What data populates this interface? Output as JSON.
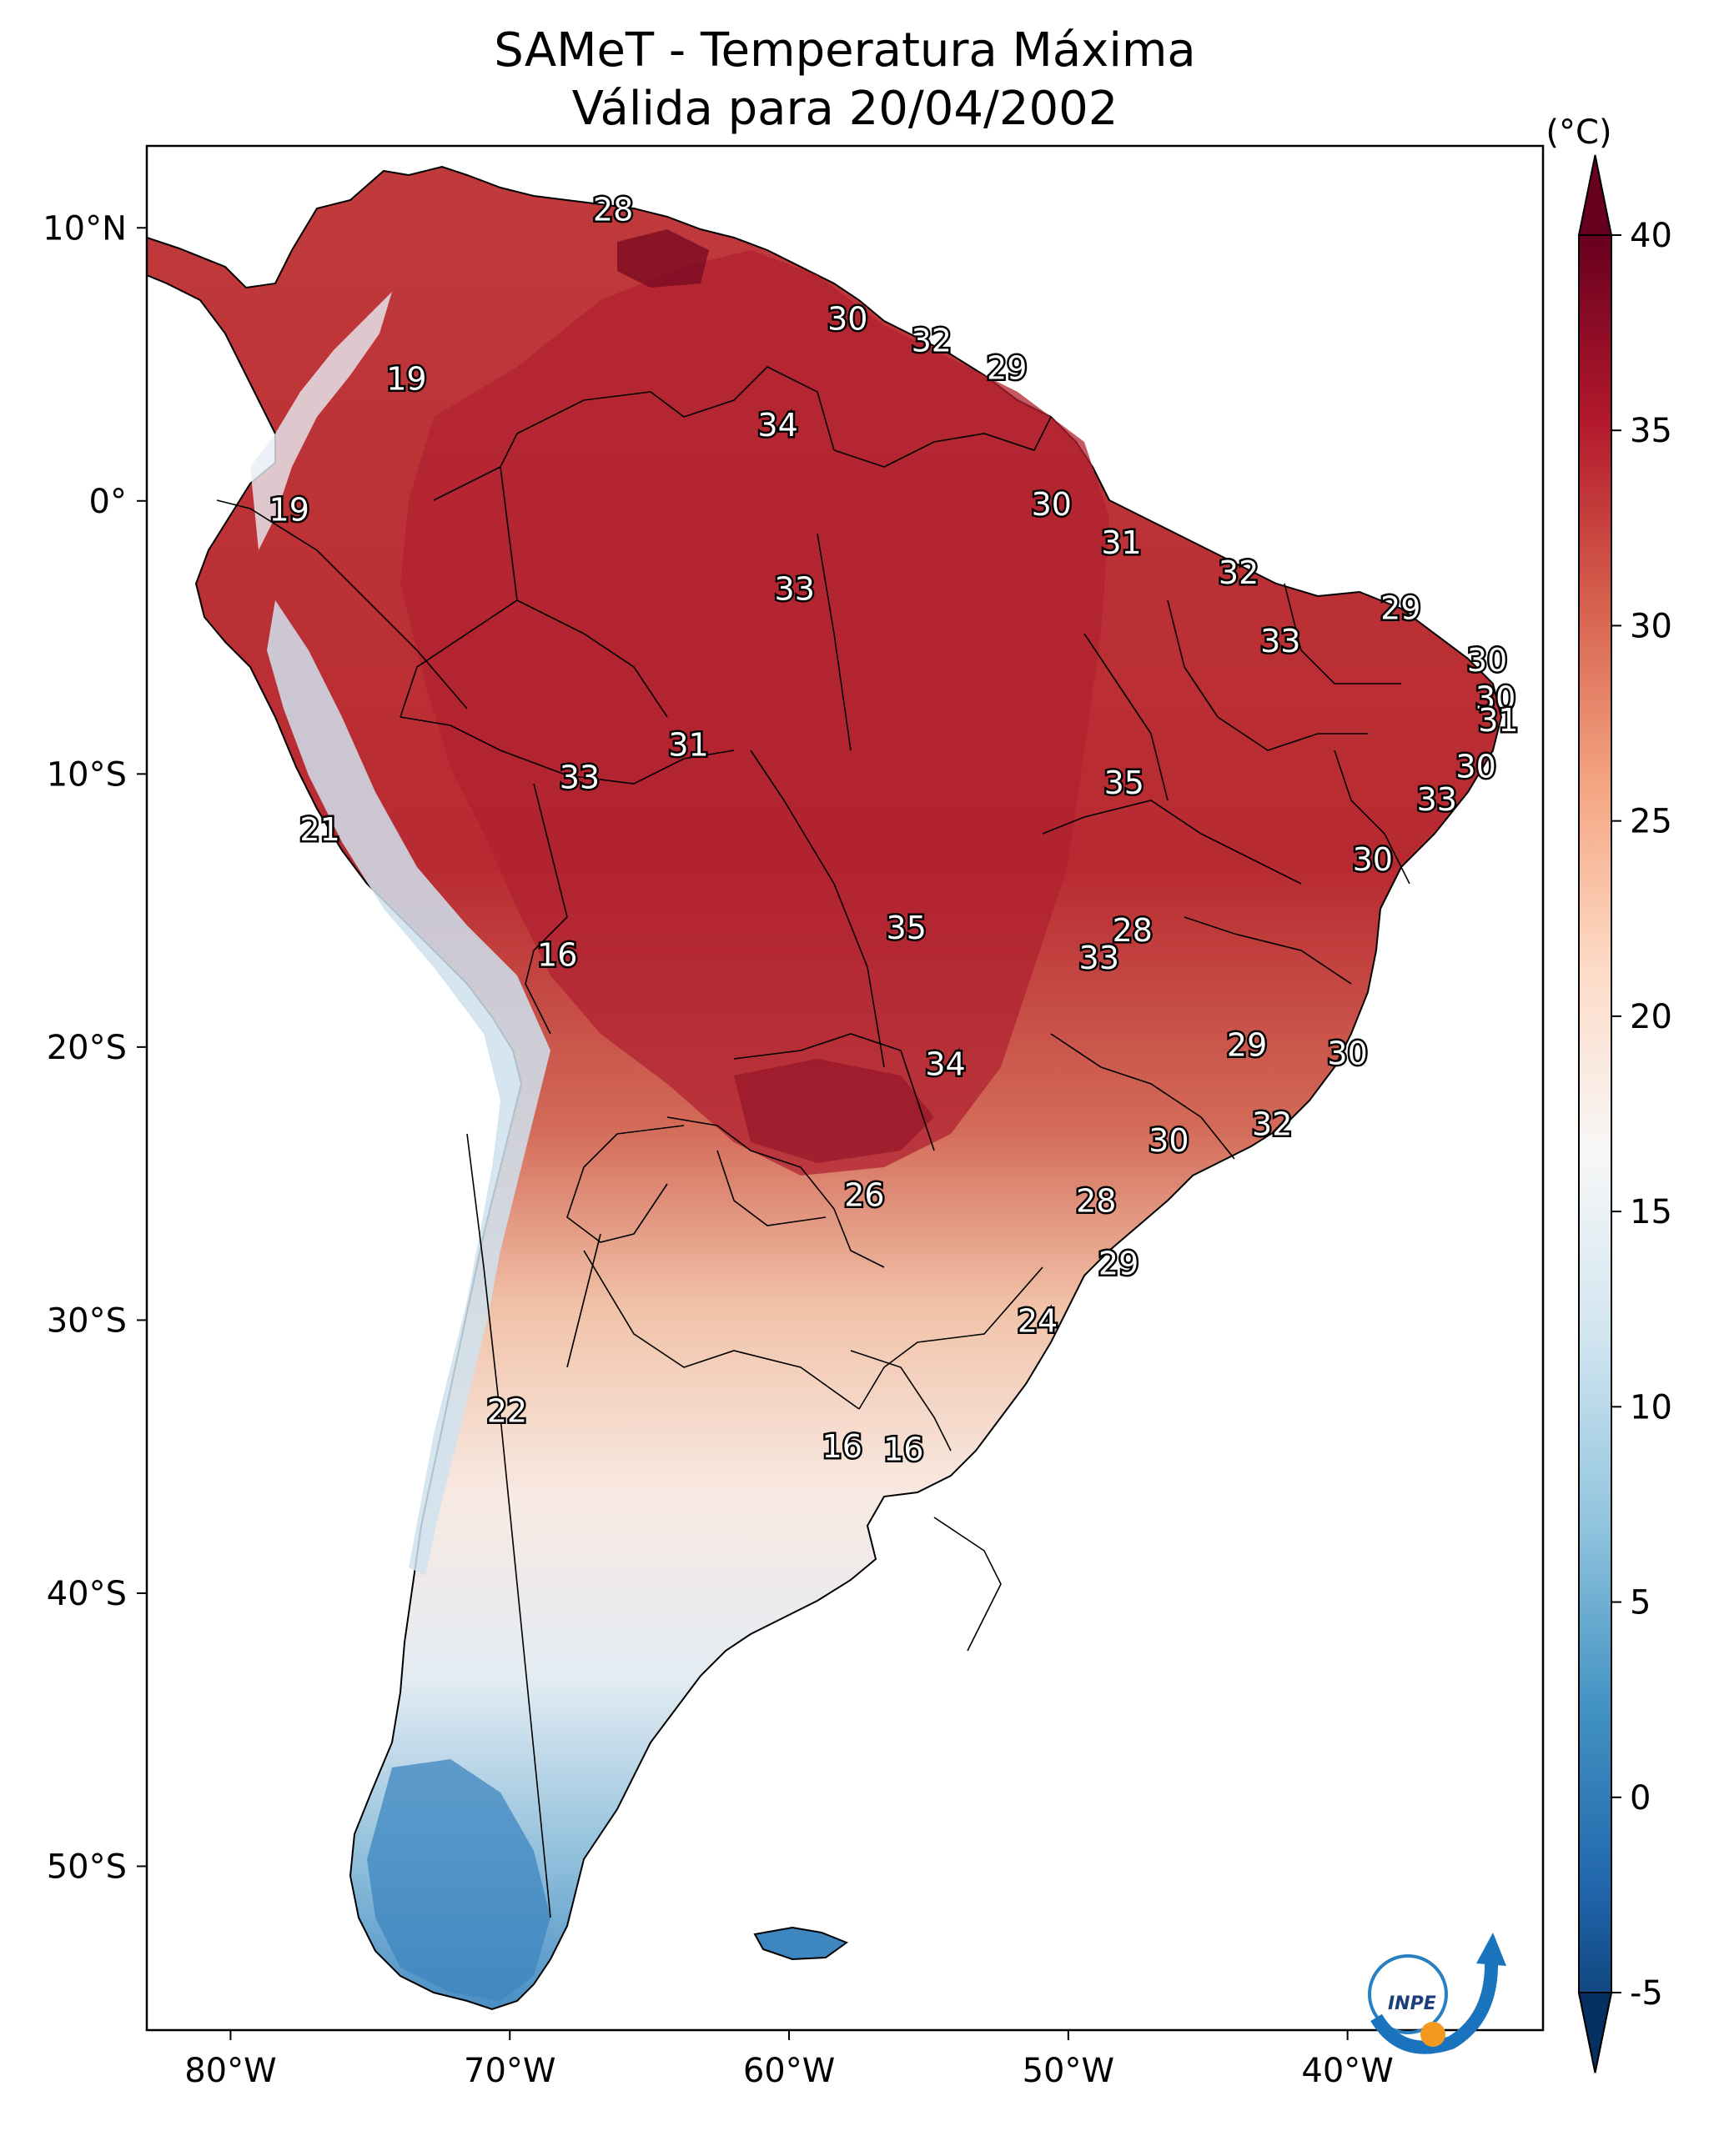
{
  "title": "SAMeT - Temperatura Máxima",
  "subtitle": "Válida para 20/04/2002",
  "colorbar": {
    "unit": "(°C)",
    "min": -5,
    "max": 40,
    "ticks": [
      "40",
      "35",
      "30",
      "25",
      "20",
      "15",
      "10",
      "5",
      "0",
      "-5"
    ],
    "tick_values": [
      40,
      35,
      30,
      25,
      20,
      15,
      10,
      5,
      0,
      -5
    ],
    "colors": [
      "#67001f",
      "#b2182b",
      "#d6604d",
      "#f4a582",
      "#fddbc7",
      "#f7f7f7",
      "#d1e5f0",
      "#92c5de",
      "#4393c3",
      "#2166ac",
      "#053061"
    ]
  },
  "axes": {
    "lon_ticks": [
      "80°W",
      "70°W",
      "60°W",
      "50°W",
      "40°W"
    ],
    "lon_values": [
      -80,
      -70,
      -60,
      -50,
      -40
    ],
    "lat_ticks": [
      "10°N",
      "0°",
      "10°S",
      "20°S",
      "30°S",
      "40°S",
      "50°S"
    ],
    "lat_values": [
      10,
      0,
      -10,
      -20,
      -30,
      -40,
      -50
    ],
    "lon_range": [
      -83,
      -33
    ],
    "lat_range": [
      -56,
      13
    ]
  },
  "labels": [
    {
      "text": "28",
      "lon": -66.3,
      "lat": 10.7
    },
    {
      "text": "19",
      "lon": -73.7,
      "lat": 4.5
    },
    {
      "text": "30",
      "lon": -57.9,
      "lat": 6.7
    },
    {
      "text": "32",
      "lon": -54.9,
      "lat": 5.9
    },
    {
      "text": "29",
      "lon": -52.2,
      "lat": 4.9
    },
    {
      "text": "34",
      "lon": -60.4,
      "lat": 2.8
    },
    {
      "text": "19",
      "lon": -77.9,
      "lat": -0.3
    },
    {
      "text": "30",
      "lon": -50.6,
      "lat": -0.1
    },
    {
      "text": "31",
      "lon": -48.1,
      "lat": -1.5
    },
    {
      "text": "32",
      "lon": -43.9,
      "lat": -2.6
    },
    {
      "text": "33",
      "lon": -59.8,
      "lat": -3.2
    },
    {
      "text": "29",
      "lon": -38.1,
      "lat": -3.9
    },
    {
      "text": "33",
      "lon": -42.4,
      "lat": -5.1
    },
    {
      "text": "30",
      "lon": -35.0,
      "lat": -5.8
    },
    {
      "text": "30",
      "lon": -34.7,
      "lat": -7.2
    },
    {
      "text": "31",
      "lon": -34.6,
      "lat": -8.0
    },
    {
      "text": "31",
      "lon": -63.6,
      "lat": -8.9
    },
    {
      "text": "30",
      "lon": -35.4,
      "lat": -9.7
    },
    {
      "text": "33",
      "lon": -67.5,
      "lat": -10.1
    },
    {
      "text": "35",
      "lon": -48.0,
      "lat": -10.3
    },
    {
      "text": "33",
      "lon": -36.8,
      "lat": -10.9
    },
    {
      "text": "21",
      "lon": -76.8,
      "lat": -12.0
    },
    {
      "text": "30",
      "lon": -39.1,
      "lat": -13.1
    },
    {
      "text": "35",
      "lon": -55.8,
      "lat": -15.6
    },
    {
      "text": "28",
      "lon": -47.7,
      "lat": -15.7
    },
    {
      "text": "16",
      "lon": -68.3,
      "lat": -16.6
    },
    {
      "text": "33",
      "lon": -48.9,
      "lat": -16.7
    },
    {
      "text": "29",
      "lon": -43.6,
      "lat": -19.9
    },
    {
      "text": "30",
      "lon": -40.0,
      "lat": -20.2
    },
    {
      "text": "34",
      "lon": -54.4,
      "lat": -20.6
    },
    {
      "text": "32",
      "lon": -42.7,
      "lat": -22.8
    },
    {
      "text": "30",
      "lon": -46.4,
      "lat": -23.4
    },
    {
      "text": "26",
      "lon": -57.3,
      "lat": -25.4
    },
    {
      "text": "28",
      "lon": -49.0,
      "lat": -25.6
    },
    {
      "text": "29",
      "lon": -48.2,
      "lat": -27.9
    },
    {
      "text": "24",
      "lon": -51.1,
      "lat": -30.0
    },
    {
      "text": "22",
      "lon": -70.1,
      "lat": -33.3
    },
    {
      "text": "16",
      "lon": -58.1,
      "lat": -34.6
    },
    {
      "text": "16",
      "lon": -55.9,
      "lat": -34.7
    }
  ]
}
